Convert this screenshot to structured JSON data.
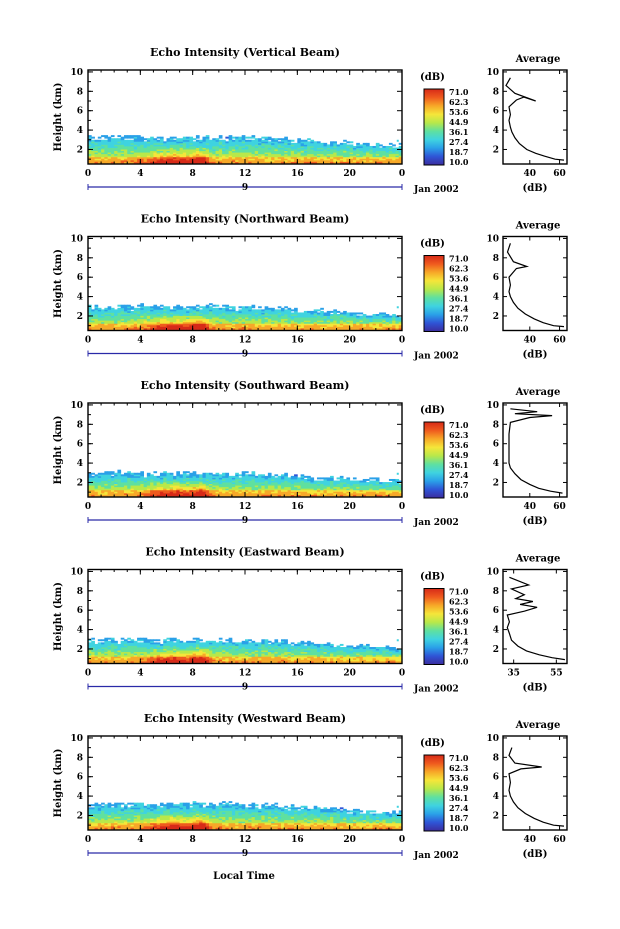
{
  "figure": {
    "x_axis_label": "Local Time",
    "date_label": "Jan 2002",
    "day_label": "9",
    "colorbar_unit": "(dB)",
    "average_title": "Average",
    "average_xlabel": "(dB)"
  },
  "colors": {
    "scale": [
      "#3b2d9e",
      "#2f54d6",
      "#2aa0e8",
      "#3fd3e0",
      "#5fe0a0",
      "#b8e84a",
      "#f5e63a",
      "#f7a828",
      "#ef5a1e",
      "#d72a18"
    ],
    "white": "#ffffff",
    "ink": "#000000"
  },
  "chart_data": [
    {
      "type": "heatmap",
      "title": "Echo Intensity (Vertical Beam)",
      "ylabel": "Height (km)",
      "x_ticks": [
        "0",
        "4",
        "8",
        "12",
        "16",
        "20",
        "0"
      ],
      "y_ticks": [
        "2",
        "4",
        "6",
        "8",
        "10"
      ],
      "xlim": [
        0,
        24
      ],
      "ylim": [
        0.5,
        10.2
      ],
      "colorbar_ticks": [
        "71.0",
        "62.3",
        "53.6",
        "44.9",
        "36.1",
        "27.4",
        "18.7",
        "10.0"
      ],
      "top_height_km": 3.3,
      "average": {
        "type": "line",
        "x_ticks": [
          "40",
          "60"
        ],
        "xlim": [
          22,
          65
        ],
        "y_ticks": [
          "2",
          "4",
          "6",
          "8",
          "10"
        ],
        "points": [
          [
            63,
            0.9
          ],
          [
            57,
            1.0
          ],
          [
            50,
            1.3
          ],
          [
            44,
            1.6
          ],
          [
            38,
            2.0
          ],
          [
            33,
            2.6
          ],
          [
            30,
            3.2
          ],
          [
            28,
            3.8
          ],
          [
            27,
            4.3
          ],
          [
            26,
            5.0
          ],
          [
            27,
            5.6
          ],
          [
            26,
            6.4
          ],
          [
            31,
            7.1
          ],
          [
            36,
            7.4
          ],
          [
            44,
            7.0
          ],
          [
            30,
            7.8
          ],
          [
            24,
            8.6
          ],
          [
            27,
            9.4
          ]
        ]
      }
    },
    {
      "type": "heatmap",
      "title": "Echo Intensity (Northward Beam)",
      "ylabel": "Height (km)",
      "x_ticks": [
        "0",
        "4",
        "8",
        "12",
        "16",
        "20",
        "0"
      ],
      "y_ticks": [
        "2",
        "4",
        "6",
        "8",
        "10"
      ],
      "xlim": [
        0,
        24
      ],
      "ylim": [
        0.5,
        10.2
      ],
      "colorbar_ticks": [
        "71.0",
        "62.3",
        "53.6",
        "44.9",
        "36.1",
        "27.4",
        "18.7",
        "10.0"
      ],
      "top_height_km": 3.0,
      "average": {
        "type": "line",
        "x_ticks": [
          "40",
          "60"
        ],
        "xlim": [
          22,
          65
        ],
        "y_ticks": [
          "2",
          "4",
          "6",
          "8",
          "10"
        ],
        "points": [
          [
            63,
            0.9
          ],
          [
            56,
            1.0
          ],
          [
            49,
            1.3
          ],
          [
            43,
            1.7
          ],
          [
            37,
            2.2
          ],
          [
            32,
            2.8
          ],
          [
            29,
            3.4
          ],
          [
            27,
            4.0
          ],
          [
            26,
            4.5
          ],
          [
            27,
            5.2
          ],
          [
            26,
            6.0
          ],
          [
            31,
            6.9
          ],
          [
            38,
            7.1
          ],
          [
            29,
            7.6
          ],
          [
            25,
            8.6
          ],
          [
            27,
            9.5
          ]
        ]
      }
    },
    {
      "type": "heatmap",
      "title": "Echo Intensity (Southward Beam)",
      "ylabel": "Height (km)",
      "x_ticks": [
        "0",
        "4",
        "8",
        "12",
        "16",
        "20",
        "0"
      ],
      "y_ticks": [
        "2",
        "4",
        "6",
        "8",
        "10"
      ],
      "xlim": [
        0,
        24
      ],
      "ylim": [
        0.5,
        10.2
      ],
      "colorbar_ticks": [
        "71.0",
        "62.3",
        "53.6",
        "44.9",
        "36.1",
        "27.4",
        "18.7",
        "10.0"
      ],
      "top_height_km": 3.0,
      "average": {
        "type": "line",
        "x_ticks": [
          "40",
          "60"
        ],
        "xlim": [
          22,
          65
        ],
        "y_ticks": [
          "2",
          "4",
          "6",
          "8",
          "10"
        ],
        "points": [
          [
            62,
            0.9
          ],
          [
            54,
            1.1
          ],
          [
            46,
            1.4
          ],
          [
            40,
            1.8
          ],
          [
            34,
            2.3
          ],
          [
            30,
            2.9
          ],
          [
            27,
            3.5
          ],
          [
            26,
            4.0
          ],
          [
            26,
            5.0
          ],
          [
            26,
            6.0
          ],
          [
            26,
            7.0
          ],
          [
            27,
            8.2
          ],
          [
            40,
            8.7
          ],
          [
            55,
            8.9
          ],
          [
            30,
            9.1
          ],
          [
            45,
            9.3
          ],
          [
            27,
            9.6
          ]
        ]
      }
    },
    {
      "type": "heatmap",
      "title": "Echo Intensity (Eastward Beam)",
      "ylabel": "Height (km)",
      "x_ticks": [
        "0",
        "4",
        "8",
        "12",
        "16",
        "20",
        "0"
      ],
      "y_ticks": [
        "2",
        "4",
        "6",
        "8",
        "10"
      ],
      "xlim": [
        0,
        24
      ],
      "ylim": [
        0.5,
        10.2
      ],
      "colorbar_ticks": [
        "71.0",
        "62.3",
        "53.6",
        "44.9",
        "36.1",
        "27.4",
        "18.7",
        "10.0"
      ],
      "top_height_km": 3.0,
      "average": {
        "type": "line",
        "x_ticks": [
          "35",
          "55"
        ],
        "xlim": [
          30,
          60
        ],
        "y_ticks": [
          "2",
          "4",
          "6",
          "8",
          "10"
        ],
        "points": [
          [
            59,
            0.9
          ],
          [
            53,
            1.1
          ],
          [
            47,
            1.4
          ],
          [
            41,
            1.8
          ],
          [
            37,
            2.3
          ],
          [
            34,
            2.9
          ],
          [
            33,
            3.6
          ],
          [
            32,
            4.2
          ],
          [
            33,
            4.8
          ],
          [
            32,
            5.5
          ],
          [
            40,
            5.9
          ],
          [
            46,
            6.3
          ],
          [
            38,
            6.6
          ],
          [
            44,
            6.9
          ],
          [
            36,
            7.2
          ],
          [
            40,
            7.6
          ],
          [
            34,
            8.2
          ],
          [
            42,
            8.6
          ],
          [
            33,
            9.4
          ]
        ]
      }
    },
    {
      "type": "heatmap",
      "title": "Echo Intensity (Westward Beam)",
      "ylabel": "Height (km)",
      "x_ticks": [
        "0",
        "4",
        "8",
        "12",
        "16",
        "20",
        "0"
      ],
      "y_ticks": [
        "2",
        "4",
        "6",
        "8",
        "10"
      ],
      "xlim": [
        0,
        24
      ],
      "ylim": [
        0.5,
        10.2
      ],
      "colorbar_ticks": [
        "71.0",
        "62.3",
        "53.6",
        "44.9",
        "36.1",
        "27.4",
        "18.7",
        "10.0"
      ],
      "top_height_km": 3.2,
      "average": {
        "type": "line",
        "x_ticks": [
          "40",
          "60"
        ],
        "xlim": [
          22,
          65
        ],
        "y_ticks": [
          "2",
          "4",
          "6",
          "8",
          "10"
        ],
        "points": [
          [
            63,
            0.9
          ],
          [
            56,
            1.0
          ],
          [
            49,
            1.3
          ],
          [
            43,
            1.7
          ],
          [
            37,
            2.2
          ],
          [
            32,
            2.8
          ],
          [
            29,
            3.4
          ],
          [
            27,
            4.0
          ],
          [
            26,
            4.6
          ],
          [
            27,
            5.4
          ],
          [
            26,
            6.3
          ],
          [
            34,
            6.8
          ],
          [
            48,
            7.0
          ],
          [
            30,
            7.4
          ],
          [
            26,
            8.2
          ],
          [
            28,
            9.0
          ]
        ]
      }
    }
  ]
}
